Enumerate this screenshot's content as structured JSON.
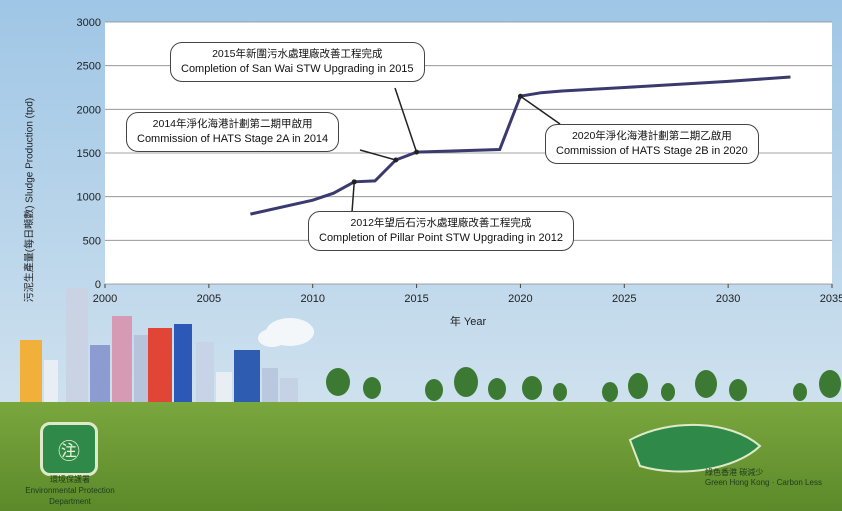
{
  "chart_data": {
    "type": "line",
    "ylabel": "污泥生產量(每日噸數) Sludge Production (tpd)",
    "xlabel": "年 Year",
    "xlim": [
      2000,
      2035
    ],
    "ylim": [
      0,
      3000
    ],
    "x_ticks": [
      "2000",
      "2005",
      "2010",
      "2015",
      "2020",
      "2025",
      "2030",
      "2035"
    ],
    "y_ticks": [
      "0",
      "500",
      "1000",
      "1500",
      "2000",
      "2500",
      "3000"
    ],
    "grid": "horizontal",
    "series": [
      {
        "color": "#3a3a6e",
        "points": [
          [
            2007,
            800
          ],
          [
            2010,
            960
          ],
          [
            2011,
            1040
          ],
          [
            2012,
            1170
          ],
          [
            2013,
            1180
          ],
          [
            2014,
            1420
          ],
          [
            2015,
            1510
          ],
          [
            2019,
            1540
          ],
          [
            2020,
            2150
          ],
          [
            2021,
            2190
          ],
          [
            2022,
            2210
          ],
          [
            2025,
            2250
          ],
          [
            2030,
            2320
          ],
          [
            2033,
            2370
          ]
        ]
      }
    ],
    "annotations": [
      {
        "zh": "2015年新圍污水處理廠改善工程完成",
        "en": "Completion of San Wai STW Upgrading in 2015",
        "x": 2015,
        "y": 1510
      },
      {
        "zh": "2014年淨化海港計劃第二期甲啟用",
        "en": "Commission of HATS Stage 2A in 2014",
        "x": 2014,
        "y": 1420
      },
      {
        "zh": "2020年淨化海港計劃第二期乙啟用",
        "en": "Commission of HATS Stage 2B in 2020",
        "x": 2020,
        "y": 2150
      },
      {
        "zh": "2012年望后石污水處理廠改善工程完成",
        "en": "Completion of Pillar Point STW Upgrading in 2012",
        "x": 2012,
        "y": 1170
      }
    ]
  },
  "logos": {
    "left_caption_zh": "環境保護署",
    "left_caption_en": "Environmental Protection Department",
    "right_caption_zh": "綠色香港 碳減少",
    "right_caption_en": "Green Hong Kong · Carbon Less"
  }
}
